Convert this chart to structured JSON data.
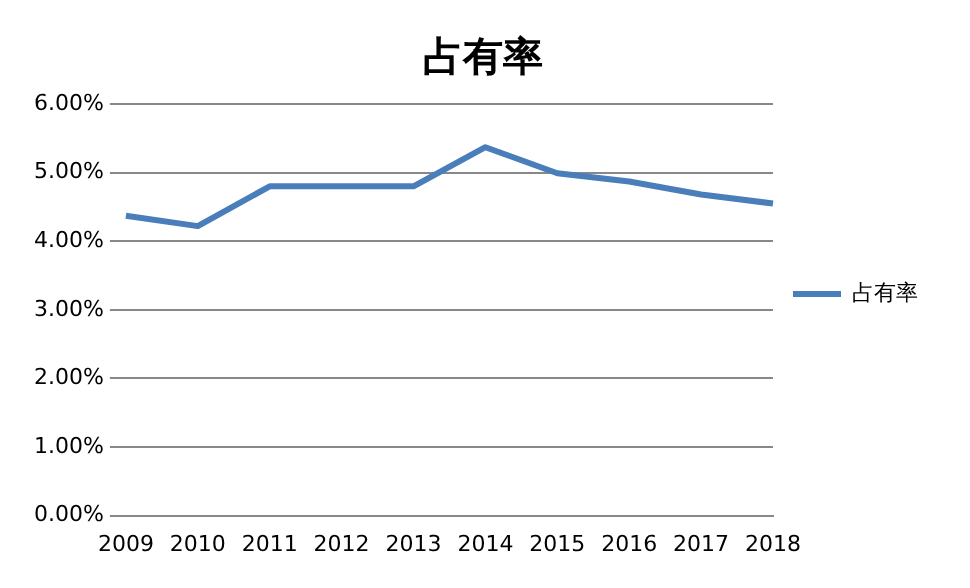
{
  "chart_data": {
    "type": "line",
    "title": "占有率",
    "categories": [
      "2009",
      "2010",
      "2011",
      "2012",
      "2013",
      "2014",
      "2015",
      "2016",
      "2017",
      "2018"
    ],
    "series": [
      {
        "name": "占有率",
        "color": "#4a7ebb",
        "values": [
          4.37,
          4.22,
          4.8,
          4.8,
          4.8,
          5.37,
          4.99,
          4.87,
          4.68,
          4.55
        ]
      }
    ],
    "ylim": [
      0,
      6
    ],
    "yticks": [
      {
        "value": 0,
        "label": "0.00%"
      },
      {
        "value": 1,
        "label": "1.00%"
      },
      {
        "value": 2,
        "label": "2.00%"
      },
      {
        "value": 3,
        "label": "3.00%"
      },
      {
        "value": 4,
        "label": "4.00%"
      },
      {
        "value": 5,
        "label": "5.00%"
      },
      {
        "value": 6,
        "label": "6.00%"
      }
    ],
    "grid": "y",
    "legend": "right",
    "marker": "none",
    "line_style": "solid"
  }
}
